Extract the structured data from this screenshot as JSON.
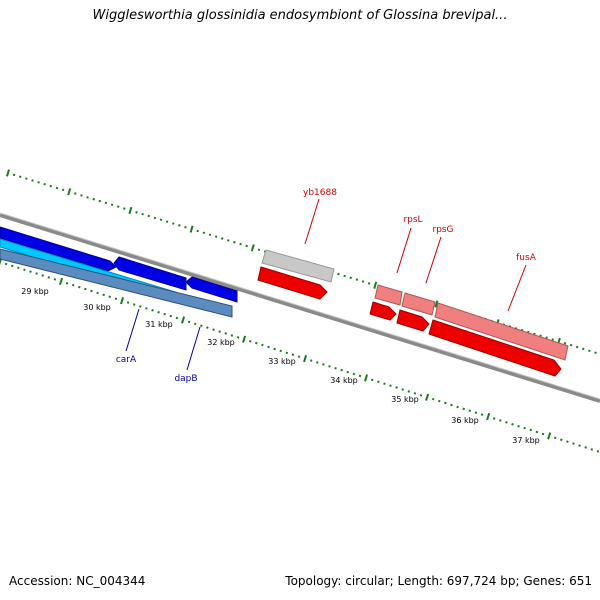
{
  "title": "Wigglesworthia glossinidia endosymbiont of Glossina brevipal...",
  "accession": "Accession: NC_004344",
  "summary": "Topology: circular; Length: 697,724 bp; Genes: 651",
  "colors": {
    "backbone": "#8a8a8a",
    "ticks": "#1a7a1a",
    "forward_label": "#cc0000",
    "reverse_label": "#000099"
  },
  "scale_labels": [
    "29 kbp",
    "30 kbp",
    "31 kbp",
    "32 kbp",
    "33 kbp",
    "34 kbp",
    "35 kbp",
    "36 kbp",
    "37 kbp"
  ],
  "gene_labels": {
    "forward": [
      "yb1688",
      "rpsL",
      "rpsG",
      "fusA"
    ],
    "reverse": [
      "carA",
      "dapB"
    ]
  }
}
